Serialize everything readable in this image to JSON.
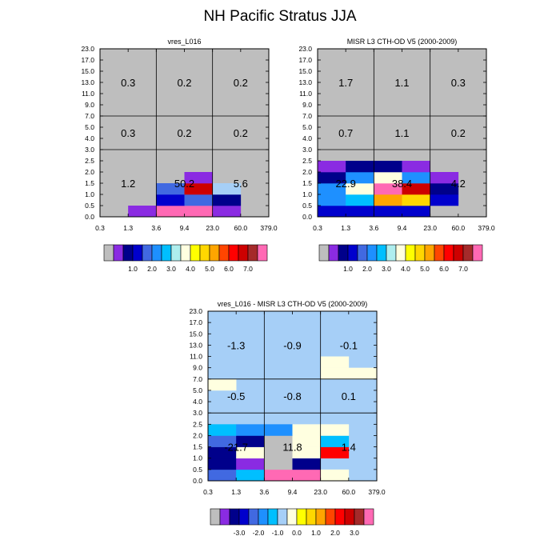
{
  "title": "NH Pacific Stratus JJA",
  "colors": {
    "missing": "#bebebe",
    "abs_palette": [
      "#bebebe",
      "#8a2be2",
      "#00008b",
      "#0000cd",
      "#4169e1",
      "#1e90ff",
      "#00bfff",
      "#aeeeee",
      "#ffffe0",
      "#ffff00",
      "#ffd700",
      "#ffa500",
      "#ff4500",
      "#ff0000",
      "#cd0000",
      "#a52a2a",
      "#ff69b4"
    ],
    "diff_palette": [
      "#bebebe",
      "#8a2be2",
      "#00008b",
      "#0000cd",
      "#4169e1",
      "#1e90ff",
      "#00bfff",
      "#a6cff7",
      "#ffffe0",
      "#ffff00",
      "#ffd700",
      "#ffa500",
      "#ff4500",
      "#ff0000",
      "#cd0000",
      "#a52a2a",
      "#ff69b4"
    ]
  },
  "chart_data": [
    {
      "type": "heatmap",
      "title": "vres_L016",
      "x_ticks": [
        "0.3",
        "1.3",
        "3.6",
        "9.4",
        "23.0",
        "60.0",
        "379.0"
      ],
      "y_ticks": [
        "0.0",
        "0.5",
        "1.0",
        "1.5",
        "2.0",
        "2.5",
        "3.0",
        "4.0",
        "5.0",
        "7.0",
        "9.0",
        "11.0",
        "13.0",
        "15.0",
        "17.0",
        "23.0"
      ],
      "colorbar_labels": [
        "1.0",
        "2.0",
        "3.0",
        "4.0",
        "5.0",
        "6.0",
        "7.0"
      ],
      "background_color": "#bebebe",
      "cells": [
        {
          "x": 1,
          "y": 0,
          "color": "#8a2be2"
        },
        {
          "x": 2,
          "y": 0,
          "color": "#ff69b4"
        },
        {
          "x": 3,
          "y": 0,
          "color": "#ff69b4"
        },
        {
          "x": 4,
          "y": 0,
          "color": "#8a2be2"
        },
        {
          "x": 2,
          "y": 1,
          "color": "#0000cd"
        },
        {
          "x": 3,
          "y": 1,
          "color": "#4169e1"
        },
        {
          "x": 4,
          "y": 1,
          "color": "#00008b"
        },
        {
          "x": 2,
          "y": 2,
          "color": "#4169e1"
        },
        {
          "x": 3,
          "y": 2,
          "color": "#cd0000"
        },
        {
          "x": 4,
          "y": 2,
          "color": "#a6cff7"
        },
        {
          "x": 3,
          "y": 3,
          "color": "#8a2be2"
        }
      ],
      "region_values": [
        {
          "label": "1.2",
          "xi": 0,
          "yi": 0
        },
        {
          "label": "50.2",
          "xi": 1,
          "yi": 0
        },
        {
          "label": "5.6",
          "xi": 2,
          "yi": 0
        },
        {
          "label": "0.3",
          "xi": 0,
          "yi": 1
        },
        {
          "label": "0.2",
          "xi": 1,
          "yi": 1
        },
        {
          "label": "0.2",
          "xi": 2,
          "yi": 1
        },
        {
          "label": "0.3",
          "xi": 0,
          "yi": 2
        },
        {
          "label": "0.2",
          "xi": 1,
          "yi": 2
        },
        {
          "label": "0.2",
          "xi": 2,
          "yi": 2
        }
      ]
    },
    {
      "type": "heatmap",
      "title": "MISR L3 CTH-OD V5 (2000-2009)",
      "x_ticks": [
        "0.3",
        "1.3",
        "3.6",
        "9.4",
        "23.0",
        "60.0",
        "379.0"
      ],
      "y_ticks": [
        "0.0",
        "0.5",
        "1.0",
        "1.5",
        "2.0",
        "2.5",
        "3.0",
        "4.0",
        "5.0",
        "7.0",
        "9.0",
        "11.0",
        "13.0",
        "15.0",
        "17.0",
        "23.0"
      ],
      "colorbar_labels": [
        "1.0",
        "2.0",
        "3.0",
        "4.0",
        "5.0",
        "6.0",
        "7.0"
      ],
      "background_color": "#bebebe",
      "cells": [
        {
          "x": 0,
          "y": 0,
          "color": "#0000cd"
        },
        {
          "x": 1,
          "y": 0,
          "color": "#0000cd"
        },
        {
          "x": 2,
          "y": 0,
          "color": "#0000cd"
        },
        {
          "x": 3,
          "y": 0,
          "color": "#0000cd"
        },
        {
          "x": 0,
          "y": 1,
          "color": "#1e90ff"
        },
        {
          "x": 1,
          "y": 1,
          "color": "#00bfff"
        },
        {
          "x": 2,
          "y": 1,
          "color": "#ffa500"
        },
        {
          "x": 3,
          "y": 1,
          "color": "#ffd700"
        },
        {
          "x": 4,
          "y": 1,
          "color": "#0000cd"
        },
        {
          "x": 0,
          "y": 2,
          "color": "#1e90ff"
        },
        {
          "x": 1,
          "y": 2,
          "color": "#ffffe0"
        },
        {
          "x": 2,
          "y": 2,
          "color": "#ff69b4"
        },
        {
          "x": 3,
          "y": 2,
          "color": "#cd0000"
        },
        {
          "x": 4,
          "y": 2,
          "color": "#00008b"
        },
        {
          "x": 0,
          "y": 3,
          "color": "#00008b"
        },
        {
          "x": 1,
          "y": 3,
          "color": "#1e90ff"
        },
        {
          "x": 2,
          "y": 3,
          "color": "#ffffe0"
        },
        {
          "x": 3,
          "y": 3,
          "color": "#1e90ff"
        },
        {
          "x": 4,
          "y": 3,
          "color": "#8a2be2"
        },
        {
          "x": 0,
          "y": 4,
          "color": "#8a2be2"
        },
        {
          "x": 1,
          "y": 4,
          "color": "#00008b"
        },
        {
          "x": 2,
          "y": 4,
          "color": "#00008b"
        },
        {
          "x": 3,
          "y": 4,
          "color": "#8a2be2"
        }
      ],
      "region_values": [
        {
          "label": "22.9",
          "xi": 0,
          "yi": 0
        },
        {
          "label": "38.4",
          "xi": 1,
          "yi": 0
        },
        {
          "label": "4.2",
          "xi": 2,
          "yi": 0
        },
        {
          "label": "0.7",
          "xi": 0,
          "yi": 1
        },
        {
          "label": "1.1",
          "xi": 1,
          "yi": 1
        },
        {
          "label": "0.2",
          "xi": 2,
          "yi": 1
        },
        {
          "label": "1.7",
          "xi": 0,
          "yi": 2
        },
        {
          "label": "1.1",
          "xi": 1,
          "yi": 2
        },
        {
          "label": "0.3",
          "xi": 2,
          "yi": 2
        }
      ]
    },
    {
      "type": "heatmap",
      "title": "vres_L016 - MISR L3 CTH-OD V5 (2000-2009)",
      "x_ticks": [
        "0.3",
        "1.3",
        "3.6",
        "9.4",
        "23.0",
        "60.0",
        "379.0"
      ],
      "y_ticks": [
        "0.0",
        "0.5",
        "1.0",
        "1.5",
        "2.0",
        "2.5",
        "3.0",
        "4.0",
        "5.0",
        "7.0",
        "9.0",
        "11.0",
        "13.0",
        "15.0",
        "17.0",
        "23.0"
      ],
      "colorbar_labels": [
        "-3.0",
        "-2.0",
        "-1.0",
        "0.0",
        "1.0",
        "2.0",
        "3.0"
      ],
      "background_color": "#a6cff7",
      "cells": [
        {
          "x": 0,
          "y": 0,
          "color": "#4169e1"
        },
        {
          "x": 1,
          "y": 0,
          "color": "#00bfff"
        },
        {
          "x": 2,
          "y": 0,
          "color": "#ff69b4"
        },
        {
          "x": 3,
          "y": 0,
          "color": "#ff69b4"
        },
        {
          "x": 4,
          "y": 0,
          "color": "#ffffe0"
        },
        {
          "x": 0,
          "y": 1,
          "color": "#00008b"
        },
        {
          "x": 1,
          "y": 1,
          "color": "#8a2be2"
        },
        {
          "x": 2,
          "y": 1,
          "color": "#bebebe"
        },
        {
          "x": 3,
          "y": 1,
          "color": "#00008b"
        },
        {
          "x": 0,
          "y": 2,
          "color": "#00008b"
        },
        {
          "x": 1,
          "y": 2,
          "color": "#ffffe0"
        },
        {
          "x": 2,
          "y": 2,
          "color": "#bebebe"
        },
        {
          "x": 3,
          "y": 2,
          "color": "#ffffe0"
        },
        {
          "x": 4,
          "y": 2,
          "color": "#ff0000"
        },
        {
          "x": 0,
          "y": 3,
          "color": "#4169e1"
        },
        {
          "x": 1,
          "y": 3,
          "color": "#00008b"
        },
        {
          "x": 2,
          "y": 3,
          "color": "#bebebe"
        },
        {
          "x": 3,
          "y": 3,
          "color": "#ffffe0"
        },
        {
          "x": 4,
          "y": 3,
          "color": "#00bfff"
        },
        {
          "x": 0,
          "y": 4,
          "color": "#00bfff"
        },
        {
          "x": 1,
          "y": 4,
          "color": "#1e90ff"
        },
        {
          "x": 2,
          "y": 4,
          "color": "#1e90ff"
        },
        {
          "x": 3,
          "y": 4,
          "color": "#ffffe0"
        },
        {
          "x": 4,
          "y": 4,
          "color": "#ffffe0"
        },
        {
          "x": 0,
          "y": 8,
          "color": "#ffffe0"
        },
        {
          "x": 4,
          "y": 9,
          "color": "#ffffe0"
        },
        {
          "x": 5,
          "y": 9,
          "color": "#ffffe0"
        },
        {
          "x": 4,
          "y": 10,
          "color": "#ffffe0"
        }
      ],
      "region_values": [
        {
          "label": "-21.7",
          "xi": 0,
          "yi": 0
        },
        {
          "label": "11.8",
          "xi": 1,
          "yi": 0
        },
        {
          "label": "1.4",
          "xi": 2,
          "yi": 0
        },
        {
          "label": "-0.5",
          "xi": 0,
          "yi": 1
        },
        {
          "label": "-0.8",
          "xi": 1,
          "yi": 1
        },
        {
          "label": "0.1",
          "xi": 2,
          "yi": 1
        },
        {
          "label": "-1.3",
          "xi": 0,
          "yi": 2
        },
        {
          "label": "-0.9",
          "xi": 1,
          "yi": 2
        },
        {
          "label": "-0.1",
          "xi": 2,
          "yi": 2
        }
      ]
    }
  ]
}
